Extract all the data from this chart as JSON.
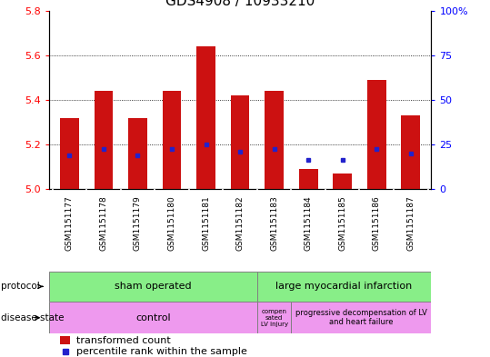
{
  "title": "GDS4908 / 10933210",
  "samples": [
    "GSM1151177",
    "GSM1151178",
    "GSM1151179",
    "GSM1151180",
    "GSM1151181",
    "GSM1151182",
    "GSM1151183",
    "GSM1151184",
    "GSM1151185",
    "GSM1151186",
    "GSM1151187"
  ],
  "bar_heights": [
    5.32,
    5.44,
    5.32,
    5.44,
    5.64,
    5.42,
    5.44,
    5.09,
    5.07,
    5.49,
    5.33
  ],
  "bar_bottom": 5.0,
  "percentile_values": [
    5.15,
    5.18,
    5.15,
    5.18,
    5.2,
    5.17,
    5.18,
    5.13,
    5.13,
    5.18,
    5.16
  ],
  "ylim_left": [
    5.0,
    5.8
  ],
  "yticks_left": [
    5.0,
    5.2,
    5.4,
    5.6,
    5.8
  ],
  "yticks_right": [
    0,
    25,
    50,
    75,
    100
  ],
  "bar_color": "#cc1111",
  "percentile_color": "#2222cc",
  "plot_bg": "#ffffff",
  "xtick_bg": "#c8c8c8",
  "protocol_sham_color": "#88ee88",
  "protocol_lmi_color": "#88ee88",
  "disease_control_color": "#ee99ee",
  "disease_comp_color": "#ee99ee",
  "disease_prog_color": "#ee99ee",
  "sham_samples": 6,
  "lmi_samples": 5,
  "control_samples": 6,
  "comp_samples": 1,
  "prog_samples": 4,
  "grid_yticks": [
    5.2,
    5.4,
    5.6
  ]
}
